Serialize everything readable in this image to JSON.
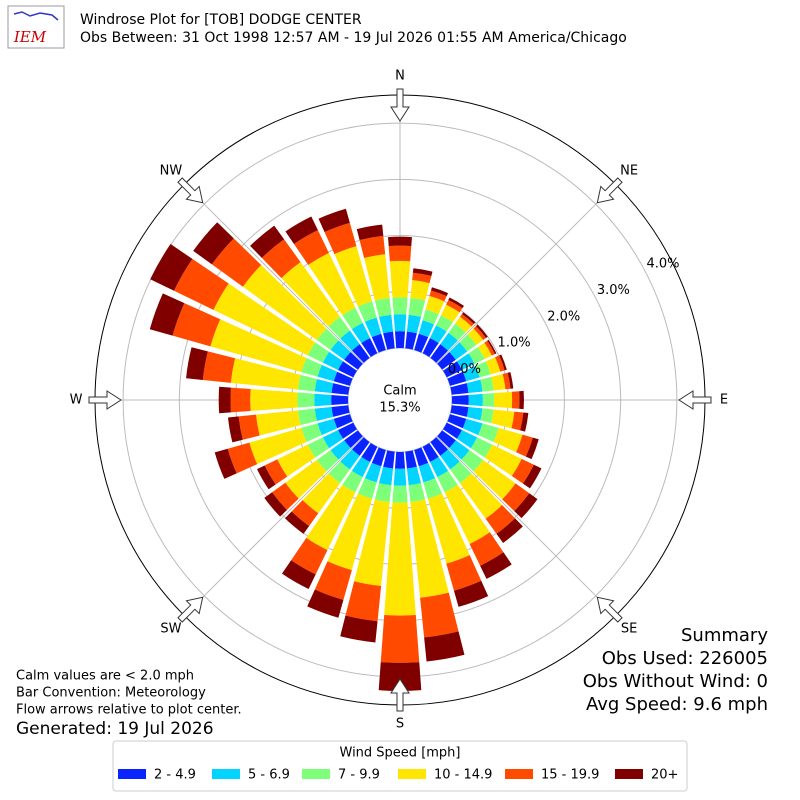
{
  "chart_data": {
    "type": "windrose",
    "logo": "IEM",
    "title": "Windrose Plot for [TOB] DODGE CENTER",
    "subtitle": "Obs Between: 31 Oct 1998 12:57 AM - 19 Jul 2026 01:55 AM America/Chicago",
    "x": [
      0,
      10,
      20,
      30,
      40,
      50,
      60,
      70,
      80,
      90,
      100,
      110,
      120,
      130,
      140,
      150,
      160,
      170,
      180,
      190,
      200,
      210,
      220,
      230,
      240,
      250,
      260,
      270,
      280,
      290,
      300,
      310,
      320,
      330,
      340,
      350
    ],
    "xticks": [
      {
        "value": 0,
        "label": "N"
      },
      {
        "value": 45,
        "label": "NE"
      },
      {
        "value": 90,
        "label": "E"
      },
      {
        "value": 135,
        "label": "SE"
      },
      {
        "value": 180,
        "label": "S"
      },
      {
        "value": 225,
        "label": "SW"
      },
      {
        "value": 270,
        "label": "W"
      },
      {
        "value": 315,
        "label": "NW"
      }
    ],
    "rlim": [
      0,
      4.5
    ],
    "rticks": [
      {
        "value": 0,
        "label": "0.0%"
      },
      {
        "value": 1,
        "label": "1.0%"
      },
      {
        "value": 2,
        "label": "2.0%"
      },
      {
        "value": 3,
        "label": "3.0%"
      },
      {
        "value": 4,
        "label": "4.0%"
      }
    ],
    "calm_label": "Calm",
    "calm_value": 15.3,
    "calm_value_label": "15.3%",
    "legend_title": "Wind Speed [mph]",
    "series": [
      {
        "name": "2 - 4.9",
        "color": "#0a24ff",
        "values": [
          0.3,
          0.3,
          0.3,
          0.3,
          0.3,
          0.3,
          0.3,
          0.3,
          0.3,
          0.3,
          0.3,
          0.3,
          0.3,
          0.3,
          0.3,
          0.3,
          0.3,
          0.3,
          0.3,
          0.3,
          0.3,
          0.3,
          0.3,
          0.3,
          0.3,
          0.3,
          0.3,
          0.3,
          0.3,
          0.3,
          0.3,
          0.3,
          0.3,
          0.3,
          0.3,
          0.3
        ]
      },
      {
        "name": "5 - 6.9",
        "color": "#00d4ff",
        "values": [
          0.3,
          0.3,
          0.25,
          0.25,
          0.25,
          0.25,
          0.25,
          0.25,
          0.25,
          0.25,
          0.25,
          0.3,
          0.3,
          0.3,
          0.3,
          0.3,
          0.3,
          0.3,
          0.3,
          0.3,
          0.3,
          0.3,
          0.3,
          0.3,
          0.3,
          0.3,
          0.3,
          0.3,
          0.3,
          0.3,
          0.3,
          0.3,
          0.3,
          0.3,
          0.3,
          0.3
        ]
      },
      {
        "name": "7 - 9.9",
        "color": "#7dff7a",
        "values": [
          0.3,
          0.3,
          0.2,
          0.2,
          0.2,
          0.2,
          0.2,
          0.2,
          0.2,
          0.2,
          0.2,
          0.3,
          0.3,
          0.3,
          0.3,
          0.3,
          0.3,
          0.3,
          0.3,
          0.3,
          0.3,
          0.3,
          0.3,
          0.3,
          0.3,
          0.3,
          0.3,
          0.3,
          0.3,
          0.3,
          0.3,
          0.3,
          0.3,
          0.3,
          0.3,
          0.3
        ]
      },
      {
        "name": "10 - 14.9",
        "color": "#ffe600",
        "values": [
          0.65,
          0.32,
          0.25,
          0.21,
          0.15,
          0.15,
          0.14,
          0.18,
          0.21,
          0.32,
          0.37,
          0.44,
          0.58,
          0.71,
          0.78,
          1.02,
          1.2,
          1.71,
          2.01,
          1.5,
          1.32,
          1.14,
          0.66,
          0.69,
          0.6,
          0.96,
          0.75,
          0.84,
          1.2,
          1.68,
          1.86,
          1.62,
          1.2,
          1.08,
          1.02,
          0.78
        ]
      },
      {
        "name": "15 - 19.9",
        "color": "#ff4a00",
        "values": [
          0.27,
          0.13,
          0.1,
          0.09,
          0.06,
          0.06,
          0.06,
          0.08,
          0.09,
          0.13,
          0.16,
          0.19,
          0.24,
          0.3,
          0.33,
          0.43,
          0.5,
          0.71,
          0.84,
          0.63,
          0.55,
          0.48,
          0.28,
          0.29,
          0.25,
          0.4,
          0.31,
          0.35,
          0.5,
          0.7,
          0.78,
          0.68,
          0.5,
          0.45,
          0.43,
          0.33
        ]
      },
      {
        "name": "20+",
        "color": "#800000",
        "values": [
          0.16,
          0.08,
          0.06,
          0.05,
          0.04,
          0.04,
          0.03,
          0.04,
          0.05,
          0.08,
          0.09,
          0.11,
          0.15,
          0.18,
          0.2,
          0.26,
          0.3,
          0.43,
          0.5,
          0.38,
          0.33,
          0.29,
          0.17,
          0.17,
          0.15,
          0.24,
          0.19,
          0.21,
          0.3,
          0.42,
          0.47,
          0.41,
          0.3,
          0.27,
          0.26,
          0.2
        ]
      }
    ],
    "notes": [
      "Calm values are < 2.0 mph",
      "Bar Convention: Meteorology",
      "Flow arrows relative to plot center."
    ],
    "generated": "Generated: 19 Jul 2026",
    "summary_title": "Summary",
    "summary": [
      "Obs Used: 226005",
      "Obs Without Wind: 0",
      "Avg Speed: 9.6 mph"
    ]
  }
}
